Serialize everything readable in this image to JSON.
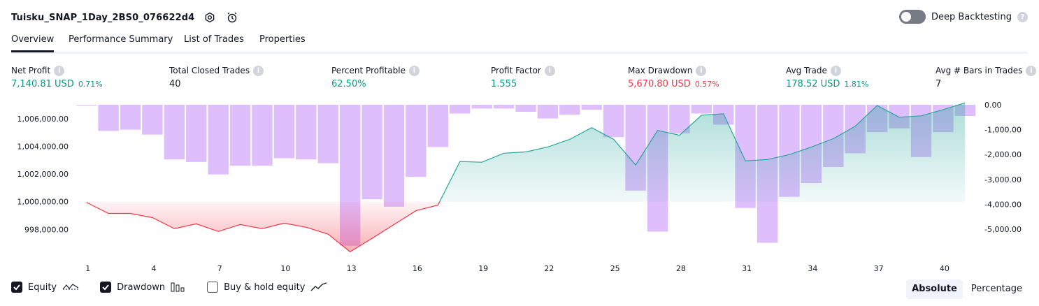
{
  "header": {
    "strategy_title": "Tuisku_SNAP_1Day_2BS0_076622d4",
    "deep_backtesting_label": "Deep Backtesting",
    "help_glyph": "?"
  },
  "tabs": [
    {
      "label": "Overview"
    },
    {
      "label": "Performance Summary"
    },
    {
      "label": "List of Trades"
    },
    {
      "label": "Properties"
    }
  ],
  "metrics": [
    {
      "label": "Net Profit",
      "value": "7,140.81 USD",
      "pct": "0.71%"
    },
    {
      "label": "Total Closed Trades",
      "value": "40",
      "pct": ""
    },
    {
      "label": "Percent Profitable",
      "value": "62.50%",
      "pct": ""
    },
    {
      "label": "Profit Factor",
      "value": "1.555",
      "pct": ""
    },
    {
      "label": "Max Drawdown",
      "value": "5,670.80 USD",
      "pct": "0.57%"
    },
    {
      "label": "Avg Trade",
      "value": "178.52 USD",
      "pct": "1.81%"
    },
    {
      "label": "Avg # Bars in Trades",
      "value": "7",
      "pct": ""
    }
  ],
  "colors": {
    "positive": "#089981",
    "negative": "#f23645",
    "drawdown_bar": "#d9b3fb",
    "equity_line_up": "#26a69a",
    "equity_line_down": "#f23645",
    "equity_fill_up": "#b2dfdb",
    "equity_fill_down": "#f8b4b8"
  },
  "legend": {
    "equity_label": "Equity",
    "drawdown_label": "Drawdown",
    "buyhold_label": "Buy & hold equity",
    "equity_checked": true,
    "drawdown_checked": true,
    "buyhold_checked": false,
    "equity_icon": "equity-line-icon",
    "drawdown_icon": "drawdown-bars-icon",
    "buyhold_icon": "buyhold-line-icon"
  },
  "view_mode": {
    "absolute_label": "Absolute",
    "percentage_label": "Percentage",
    "selected": "Absolute"
  },
  "chart_data": {
    "type": "line",
    "x_ticks": [
      "1",
      "4",
      "7",
      "10",
      "13",
      "16",
      "19",
      "22",
      "25",
      "28",
      "31",
      "34",
      "37",
      "40"
    ],
    "y_left_ticks": [
      "1,006,000.00",
      "1,004,000.00",
      "1,002,000.00",
      "1,000,000.00",
      "998,000.00"
    ],
    "y_right_ticks": [
      "0.00",
      "-1,000.00",
      "-2,000.00",
      "-3,000.00",
      "-4,000.00",
      "-5,000.00"
    ],
    "baseline": 1000000,
    "y_left_range": [
      996400,
      1007000
    ],
    "y_right_range": [
      -5900,
      0
    ],
    "series": [
      {
        "name": "Equity",
        "axis": "left",
        "x": [
          1,
          2,
          3,
          4,
          5,
          6,
          7,
          8,
          9,
          10,
          11,
          12,
          13,
          14,
          15,
          16,
          17,
          18,
          19,
          20,
          21,
          22,
          23,
          24,
          25,
          26,
          27,
          28,
          29,
          30,
          31,
          32,
          33,
          34,
          35,
          36,
          37,
          38,
          39,
          40,
          41
        ],
        "values": [
          999950,
          999150,
          999150,
          998850,
          998050,
          998400,
          997850,
          998350,
          998050,
          998450,
          998150,
          997650,
          996380,
          997350,
          998350,
          999350,
          999750,
          1002900,
          1002850,
          1003500,
          1003600,
          1003950,
          1004500,
          1005350,
          1004500,
          1002650,
          1005150,
          1004800,
          1006250,
          1006350,
          1002950,
          1003050,
          1003400,
          1003950,
          1004550,
          1005450,
          1006950,
          1006100,
          1006200,
          1006650,
          1007140
        ]
      },
      {
        "name": "Drawdown",
        "axis": "right",
        "x": [
          1,
          2,
          3,
          4,
          5,
          6,
          7,
          8,
          9,
          10,
          11,
          12,
          13,
          14,
          15,
          16,
          17,
          18,
          19,
          20,
          21,
          22,
          23,
          24,
          25,
          26,
          27,
          28,
          29,
          30,
          31,
          32,
          33,
          34,
          35,
          36,
          37,
          38,
          39,
          40,
          41
        ],
        "values": [
          -20,
          -1050,
          -1000,
          -1200,
          -2200,
          -2300,
          -2800,
          -2450,
          -2450,
          -2150,
          -2200,
          -2350,
          -5670,
          -3800,
          -4100,
          -2900,
          -1700,
          -350,
          -150,
          -150,
          -280,
          -550,
          -400,
          -200,
          -1300,
          -3450,
          -5100,
          -1150,
          -350,
          -800,
          -4150,
          -5550,
          -3700,
          -3150,
          -2500,
          -1950,
          -1100,
          -950,
          -2100,
          -1100,
          -450
        ]
      }
    ]
  }
}
